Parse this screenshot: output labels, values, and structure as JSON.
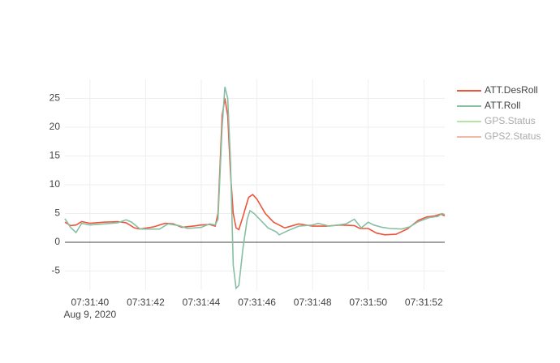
{
  "chart_data": {
    "type": "line",
    "x_date_label": "Aug 9, 2020",
    "xlim": [
      "07:31:39.1",
      "07:31:52.75"
    ],
    "xticks": [
      "07:31:40",
      "07:31:42",
      "07:31:44",
      "07:31:46",
      "07:31:48",
      "07:31:50",
      "07:31:52"
    ],
    "ylim": [
      -8.3,
      28.3
    ],
    "yticks": [
      -5,
      0,
      5,
      10,
      15,
      20,
      25
    ],
    "grid": true,
    "series": [
      {
        "name": "ATT.DesRoll",
        "color": "#ef553b",
        "x": [
          "07:31:39.1",
          "07:31:39.3",
          "07:31:39.5",
          "07:31:39.7",
          "07:31:40",
          "07:31:40.5",
          "07:31:41",
          "07:31:41.3",
          "07:31:41.6",
          "07:31:41.8",
          "07:31:42.3",
          "07:31:42.7",
          "07:31:43",
          "07:31:43.3",
          "07:31:43.7",
          "07:31:44",
          "07:31:44.3",
          "07:31:44.5",
          "07:31:44.6",
          "07:31:44.75",
          "07:31:44.85",
          "07:31:44.95",
          "07:31:45.05",
          "07:31:45.15",
          "07:31:45.25",
          "07:31:45.35",
          "07:31:45.5",
          "07:31:45.7",
          "07:31:45.85",
          "07:31:46",
          "07:31:46.3",
          "07:31:46.6",
          "07:31:47",
          "07:31:47.5",
          "07:31:48",
          "07:31:48.5",
          "07:31:49",
          "07:31:49.5",
          "07:31:49.7",
          "07:31:50",
          "07:31:50.3",
          "07:31:50.6",
          "07:31:51",
          "07:31:51.4",
          "07:31:51.8",
          "07:31:52.1",
          "07:31:52.4",
          "07:31:52.6",
          "07:31:52.75"
        ],
        "values": [
          3.5,
          2.9,
          3.0,
          3.6,
          3.3,
          3.5,
          3.6,
          3.4,
          2.5,
          2.3,
          2.7,
          3.3,
          3.2,
          2.6,
          2.8,
          3.0,
          3.1,
          2.8,
          5.0,
          22,
          25,
          22,
          12,
          5,
          2.5,
          2.2,
          4.5,
          7.8,
          8.3,
          7.5,
          5,
          3.5,
          2.5,
          3.2,
          2.8,
          2.8,
          3.0,
          2.9,
          2.4,
          2.4,
          1.6,
          1.3,
          1.4,
          2.3,
          3.8,
          4.4,
          4.6,
          4.9,
          4.6
        ]
      },
      {
        "name": "ATT.Roll",
        "color": "#86bfa4",
        "x": [
          "07:31:39.1",
          "07:31:39.3",
          "07:31:39.5",
          "07:31:39.7",
          "07:31:40",
          "07:31:40.5",
          "07:31:41",
          "07:31:41.3",
          "07:31:41.5",
          "07:31:41.8",
          "07:31:42.2",
          "07:31:42.5",
          "07:31:42.8",
          "07:31:43.2",
          "07:31:43.5",
          "07:31:44",
          "07:31:44.3",
          "07:31:44.5",
          "07:31:44.6",
          "07:31:44.75",
          "07:31:44.85",
          "07:31:44.95",
          "07:31:45.05",
          "07:31:45.15",
          "07:31:45.25",
          "07:31:45.35",
          "07:31:45.5",
          "07:31:45.65",
          "07:31:45.75",
          "07:31:45.9",
          "07:31:46.2",
          "07:31:46.4",
          "07:31:46.7",
          "07:31:46.8",
          "07:31:47.1",
          "07:31:47.5",
          "07:31:48",
          "07:31:48.2",
          "07:31:48.6",
          "07:31:49.2",
          "07:31:49.5",
          "07:31:49.75",
          "07:31:50",
          "07:31:50.2",
          "07:31:50.5",
          "07:31:50.8",
          "07:31:51.2",
          "07:31:51.5",
          "07:31:51.8",
          "07:31:52.2",
          "07:31:52.5",
          "07:31:52.65",
          "07:31:52.75"
        ],
        "values": [
          4.1,
          2.6,
          1.7,
          3.3,
          3.0,
          3.2,
          3.4,
          3.9,
          3.5,
          2.3,
          2.3,
          2.3,
          3.2,
          2.9,
          2.4,
          2.6,
          3.2,
          3.0,
          4.0,
          20,
          27,
          25,
          14,
          -4,
          -8,
          -7.5,
          -1,
          4,
          5.5,
          5,
          3.5,
          2.5,
          1.8,
          1.3,
          2.0,
          2.8,
          3.0,
          3.3,
          2.8,
          3.2,
          4.0,
          2.5,
          3.5,
          3.0,
          2.6,
          2.4,
          2.3,
          2.7,
          3.6,
          4.3,
          4.5,
          5.0,
          4.8
        ]
      }
    ],
    "legend_only": [
      {
        "name": "GPS.Status",
        "color": "#b5e6a6"
      },
      {
        "name": "GPS2.Status",
        "color": "#f2b8a8"
      }
    ]
  }
}
